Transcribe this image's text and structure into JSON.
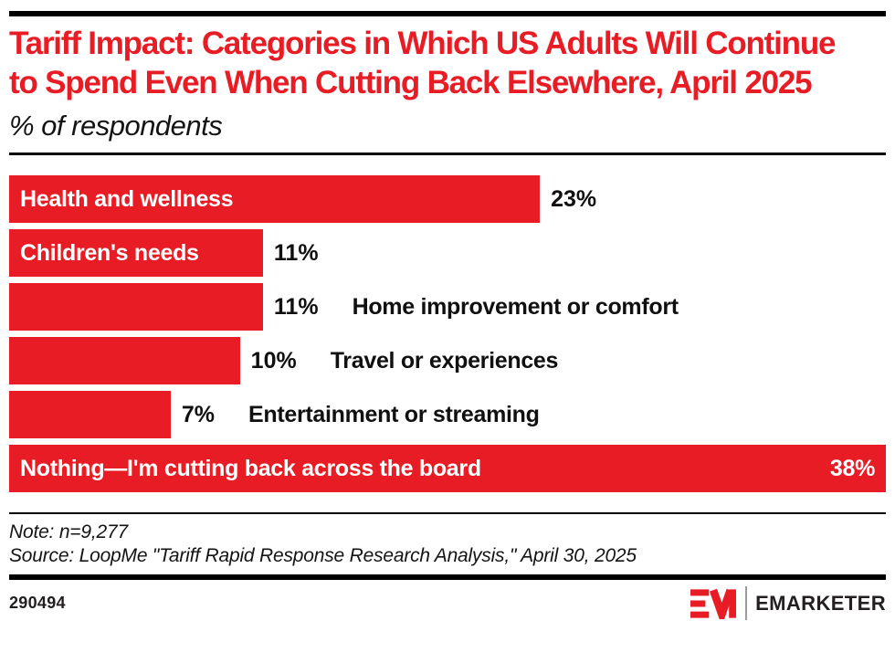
{
  "header": {
    "title": "Tariff Impact: Categories in Which US Adults Will Continue to Spend Even When Cutting Back Elsewhere, April 2025",
    "subtitle": "% of respondents"
  },
  "chart_data": {
    "type": "bar",
    "orientation": "horizontal",
    "title": "Tariff Impact: Categories in Which US Adults Will Continue to Spend Even When Cutting Back Elsewhere, April 2025",
    "subtitle": "% of respondents",
    "unit": "%",
    "categories": [
      "Health and wellness",
      "Children's needs",
      "Home improvement or comfort",
      "Travel or experiences",
      "Entertainment or streaming",
      "Nothing—I'm cutting back across the board"
    ],
    "values": [
      23,
      11,
      11,
      10,
      7,
      38
    ],
    "value_labels": [
      "23%",
      "11%",
      "11%",
      "10%",
      "7%",
      "38%"
    ],
    "xlim": [
      0,
      38
    ],
    "grid": false,
    "legend": false,
    "bar_color": "#e81c24",
    "label_placement": [
      "inside",
      "inside",
      "outside",
      "outside",
      "outside",
      "inside"
    ],
    "value_placement": [
      "outside",
      "outside",
      "outside",
      "outside",
      "outside",
      "inside"
    ]
  },
  "footer": {
    "note": "Note: n=9,277",
    "source": "Source: LoopMe \"Tariff Rapid Response Research Analysis,\" April 30, 2025",
    "chart_id": "290494",
    "brand": "EMARKETER"
  },
  "colors": {
    "accent_red": "#e81c24",
    "rule_black": "#000000",
    "logo_dark": "#231f20",
    "logo_divider_gray": "#9b9b9b"
  },
  "icons": {
    "em_logo": "emarketer-em-monogram"
  }
}
